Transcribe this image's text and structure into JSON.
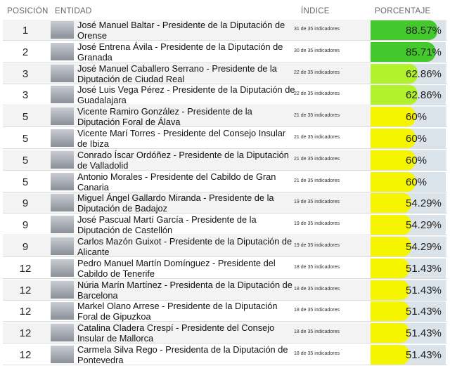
{
  "header": {
    "position": "POSICIÓN",
    "entity": "ENTIDAD",
    "index": "ÍNDICE",
    "percentage": "PORCENTAJE"
  },
  "rows": [
    {
      "position": 1,
      "name": "José Manuel Baltar - Presidente de la Diputación de Orense",
      "index": "31 de 35 indicadores",
      "percent": 88.57,
      "percent_label": "88.57%",
      "color": "#44c92c"
    },
    {
      "position": 2,
      "name": "José Entrena Ávila - Presidente de la Diputación de Granada",
      "index": "30 de 35 indicadores",
      "percent": 85.71,
      "percent_label": "85.71%",
      "color": "#44c92c"
    },
    {
      "position": 3,
      "name": "José Manuel Caballero Serrano - Presidente de la Diputación de Ciudad Real",
      "index": "22 de 35 indicadores",
      "percent": 62.86,
      "percent_label": "62.86%",
      "color": "#b2f22c"
    },
    {
      "position": 3,
      "name": "José Luis Vega Pérez - Presidente de la Diputación de Guadalajara",
      "index": "22 de 35 indicadores",
      "percent": 62.86,
      "percent_label": "62.86%",
      "color": "#b2f22c"
    },
    {
      "position": 5,
      "name": "Vicente Ramiro González - Presidente de la Diputación Foral de Álava",
      "index": "21 de 35 indicadores",
      "percent": 60,
      "percent_label": "60%",
      "color": "#f5f500"
    },
    {
      "position": 5,
      "name": "Vicente Marí Torres - Presidente del Consejo Insular de Ibiza",
      "index": "21 de 35 indicadores",
      "percent": 60,
      "percent_label": "60%",
      "color": "#f5f500"
    },
    {
      "position": 5,
      "name": "Conrado Íscar Ordóñez - Presidente de la Diputación de Valladolid",
      "index": "21 de 35 indicadores",
      "percent": 60,
      "percent_label": "60%",
      "color": "#f5f500"
    },
    {
      "position": 5,
      "name": "Antonio Morales - Presidente del Cabildo de Gran Canaria",
      "index": "21 de 35 indicadores",
      "percent": 60,
      "percent_label": "60%",
      "color": "#f5f500"
    },
    {
      "position": 9,
      "name": "Miguel Ángel Gallardo Miranda - Presidente de la Diputación de Badajoz",
      "index": "19 de 35 indicadores",
      "percent": 54.29,
      "percent_label": "54.29%",
      "color": "#f5f500"
    },
    {
      "position": 9,
      "name": "José Pascual Martí García - Presidente de la Diputación de Castellón",
      "index": "19 de 35 indicadores",
      "percent": 54.29,
      "percent_label": "54.29%",
      "color": "#f5f500"
    },
    {
      "position": 9,
      "name": "Carlos Mazón Guixot - Presidente de la Diputación de Alicante",
      "index": "19 de 35 indicadores",
      "percent": 54.29,
      "percent_label": "54.29%",
      "color": "#f5f500"
    },
    {
      "position": 12,
      "name": "Pedro Manuel Martín Domínguez - Presidente del Cabildo de Tenerife",
      "index": "18 de 35 indicadores",
      "percent": 51.43,
      "percent_label": "51.43%",
      "color": "#f5f500"
    },
    {
      "position": 12,
      "name": "Núria Marín Martínez - Presidenta de la Diputación de Barcelona",
      "index": "18 de 35 indicadores",
      "percent": 51.43,
      "percent_label": "51.43%",
      "color": "#f5f500"
    },
    {
      "position": 12,
      "name": "Markel Olano Arrese - Presidente de la Diputación Foral de Gipuzkoa",
      "index": "18 de 35 indicadores",
      "percent": 51.43,
      "percent_label": "51.43%",
      "color": "#f5f500"
    },
    {
      "position": 12,
      "name": "Catalina Cladera Crespí - Presidente del Consejo Insular de Mallorca",
      "index": "18 de 35 indicadores",
      "percent": 51.43,
      "percent_label": "51.43%",
      "color": "#f5f500"
    },
    {
      "position": 12,
      "name": "Carmela Silva Rego - Presidenta de la Diputación de Pontevedra",
      "index": "18 de 35 indicadores",
      "percent": 51.43,
      "percent_label": "51.43%",
      "color": "#f5f500"
    }
  ]
}
